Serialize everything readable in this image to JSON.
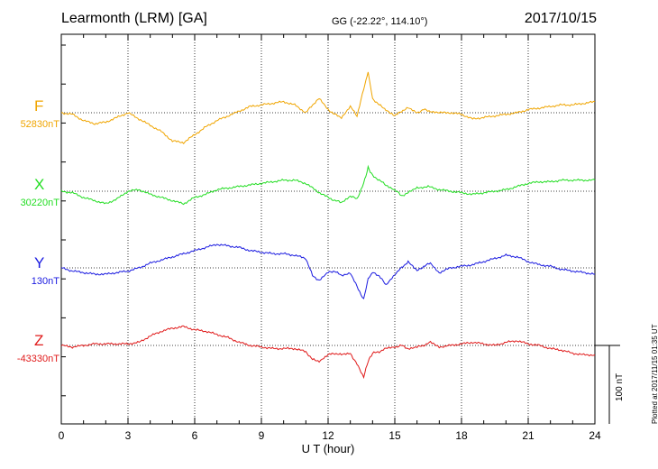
{
  "header": {
    "title": "Learmonth (LRM)  [GA]",
    "coords": "GG (-22.22°, 114.10°)",
    "date": "2017/10/15"
  },
  "footer": {
    "plotted": "Plotted at 2017/11/15 01:35 UT"
  },
  "scale": {
    "label": "100 nT",
    "value_nT": 100
  },
  "chart_data": {
    "type": "line",
    "title": "Learmonth (LRM)  [GA]",
    "xlabel": "U T (hour)",
    "ylabel": "",
    "xlim": [
      0,
      24
    ],
    "xticks": [
      0,
      3,
      6,
      9,
      12,
      15,
      18,
      21,
      24
    ],
    "grid": true,
    "series": [
      {
        "name": "F",
        "baseline_label": "52830nT",
        "color": "#f0a500",
        "x": [
          0,
          0.5,
          1,
          1.5,
          2,
          2.5,
          3,
          3.5,
          4,
          4.5,
          5,
          5.5,
          6,
          6.5,
          7,
          7.5,
          8,
          8.5,
          9,
          9.5,
          10,
          10.5,
          11,
          11.3,
          11.6,
          12,
          12.3,
          12.6,
          13,
          13.3,
          13.6,
          13.8,
          14,
          14.3,
          14.6,
          15,
          15.3,
          15.6,
          16,
          16.3,
          16.6,
          17,
          17.5,
          18,
          18.5,
          19,
          19.5,
          20,
          20.5,
          21,
          21.5,
          22,
          22.5,
          23,
          23.5,
          24
        ],
        "y": [
          0,
          -2,
          -10,
          -14,
          -12,
          -6,
          0,
          -8,
          -16,
          -24,
          -36,
          -38,
          -28,
          -18,
          -10,
          -4,
          2,
          8,
          10,
          12,
          14,
          10,
          0,
          10,
          18,
          4,
          -2,
          -6,
          8,
          -4,
          30,
          52,
          18,
          10,
          4,
          -4,
          2,
          6,
          0,
          4,
          2,
          0,
          0,
          -2,
          -8,
          -6,
          -4,
          -2,
          0,
          4,
          6,
          8,
          10,
          10,
          12,
          14
        ]
      },
      {
        "name": "X",
        "baseline_label": "30220nT",
        "color": "#22dd22",
        "x": [
          0,
          0.5,
          1,
          1.5,
          2,
          2.5,
          3,
          3.5,
          4,
          4.5,
          5,
          5.5,
          6,
          6.5,
          7,
          7.5,
          8,
          8.5,
          9,
          9.5,
          10,
          10.5,
          11,
          11.5,
          12,
          12.3,
          12.6,
          13,
          13.3,
          13.6,
          13.8,
          14,
          14.3,
          14.6,
          15,
          15.3,
          15.6,
          16,
          16.5,
          17,
          17.5,
          18,
          18.5,
          19,
          19.5,
          20,
          20.5,
          21,
          21.5,
          22,
          22.5,
          23,
          23.5,
          24
        ],
        "y": [
          0,
          -2,
          -8,
          -12,
          -16,
          -10,
          0,
          2,
          -4,
          -8,
          -12,
          -16,
          -8,
          -4,
          2,
          4,
          6,
          8,
          10,
          12,
          14,
          14,
          10,
          0,
          -8,
          -12,
          -14,
          -6,
          -10,
          10,
          30,
          20,
          14,
          8,
          2,
          -6,
          -2,
          4,
          6,
          2,
          0,
          -2,
          -4,
          -2,
          0,
          2,
          6,
          10,
          12,
          12,
          14,
          14,
          14,
          14
        ]
      },
      {
        "name": "Y",
        "baseline_label": "130nT",
        "color": "#1a1ae0",
        "x": [
          0,
          0.5,
          1,
          1.5,
          2,
          2.5,
          3,
          3.5,
          4,
          4.5,
          5,
          5.5,
          6,
          6.5,
          7,
          7.5,
          8,
          8.5,
          9,
          9.5,
          10,
          10.5,
          11,
          11.3,
          11.6,
          12,
          12.3,
          12.6,
          13,
          13.3,
          13.6,
          13.8,
          14,
          14.3,
          14.6,
          15,
          15.3,
          15.6,
          16,
          16.3,
          16.6,
          17,
          17.5,
          18,
          18.5,
          19,
          19.5,
          20,
          20.5,
          21,
          21.5,
          22,
          22.5,
          23,
          23.5,
          24
        ],
        "y": [
          0,
          -4,
          -6,
          -8,
          -8,
          -6,
          -4,
          0,
          6,
          10,
          14,
          18,
          22,
          26,
          30,
          28,
          26,
          22,
          20,
          18,
          18,
          16,
          12,
          -10,
          -16,
          -6,
          -4,
          -10,
          -6,
          -24,
          -40,
          -14,
          -6,
          -10,
          -22,
          -8,
          0,
          8,
          -4,
          2,
          6,
          -6,
          0,
          2,
          4,
          8,
          12,
          16,
          14,
          8,
          4,
          2,
          -2,
          -4,
          -6,
          -8
        ]
      },
      {
        "name": "Z",
        "baseline_label": "-43330nT",
        "color": "#e01a1a",
        "x": [
          0,
          0.5,
          1,
          1.5,
          2,
          2.5,
          3,
          3.5,
          4,
          4.5,
          5,
          5.5,
          6,
          6.5,
          7,
          7.5,
          8,
          8.5,
          9,
          9.5,
          10,
          10.5,
          11,
          11.3,
          11.6,
          12,
          12.3,
          12.6,
          13,
          13.3,
          13.6,
          13.8,
          14,
          14.3,
          14.6,
          15,
          15.3,
          15.6,
          16,
          16.3,
          16.6,
          17,
          17.5,
          18,
          18.5,
          19,
          19.5,
          20,
          20.5,
          21,
          21.5,
          22,
          22.5,
          23,
          23.5,
          24
        ],
        "y": [
          0,
          -2,
          0,
          2,
          2,
          2,
          2,
          4,
          12,
          18,
          22,
          24,
          20,
          18,
          14,
          10,
          4,
          0,
          -2,
          -4,
          -4,
          -4,
          -8,
          -18,
          -20,
          -12,
          -10,
          -12,
          -10,
          -24,
          -40,
          -20,
          -10,
          -8,
          -4,
          -2,
          0,
          -4,
          -2,
          0,
          4,
          -2,
          0,
          2,
          4,
          2,
          0,
          4,
          6,
          2,
          0,
          -4,
          -6,
          -10,
          -12,
          -12
        ]
      }
    ]
  }
}
